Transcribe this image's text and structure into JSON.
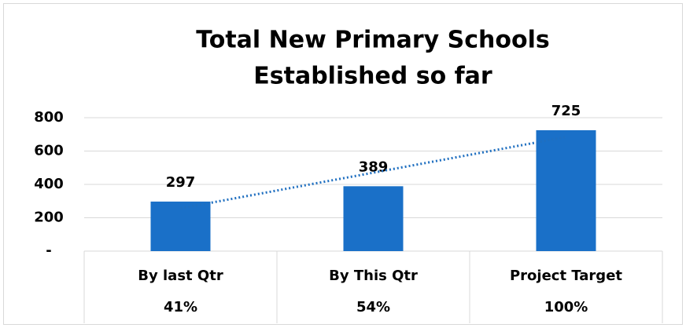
{
  "chart_data": {
    "type": "bar",
    "title": [
      "Total New Primary Schools",
      "Established so far"
    ],
    "categories": [
      "By last Qtr",
      "By This Qtr",
      "Project Target"
    ],
    "subcategories": [
      "41%",
      "54%",
      "100%"
    ],
    "values": [
      297,
      389,
      725
    ],
    "color": "#1a70c8",
    "ylim": [
      0,
      800
    ],
    "yticks": [
      {
        "value": 0,
        "label": "-"
      },
      200,
      400,
      600,
      800
    ],
    "grid": true,
    "trendline": {
      "type": "linear",
      "color": "#1f6fc0"
    }
  }
}
